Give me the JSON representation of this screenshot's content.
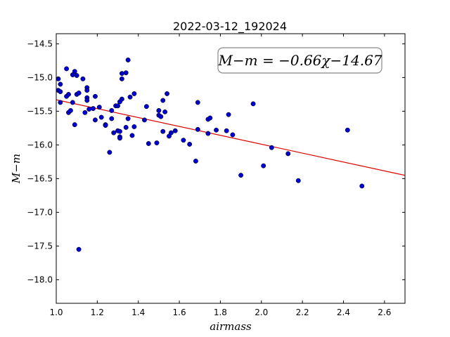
{
  "chart_data": {
    "type": "scatter",
    "title": "2022-03-12_192024",
    "xlabel": "airmass",
    "ylabel": "M−m",
    "xlim": [
      1.0,
      2.7
    ],
    "ylim": [
      -18.35,
      -14.35
    ],
    "y_inverted": true,
    "grid": false,
    "annotation": "M−m = −0.66χ−14.67",
    "xticks": [
      1.0,
      1.2,
      1.4,
      1.6,
      1.8,
      2.0,
      2.2,
      2.4,
      2.6
    ],
    "xtick_labels": [
      "1.0",
      "1.2",
      "1.4",
      "1.6",
      "1.8",
      "2.0",
      "2.2",
      "2.4",
      "2.6"
    ],
    "yticks": [
      -14.5,
      -15.0,
      -15.5,
      -16.0,
      -16.5,
      -17.0,
      -17.5,
      -18.0
    ],
    "ytick_labels": [
      "−14.5",
      "−15.0",
      "−15.5",
      "−16.0",
      "−16.5",
      "−17.0",
      "−17.5",
      "−18.0"
    ],
    "fit": {
      "slope": -0.66,
      "intercept": -14.67,
      "color": "#dd0000"
    },
    "points_color": "#0000cc",
    "points": [
      [
        1.01,
        -15.02
      ],
      [
        1.01,
        -15.19
      ],
      [
        1.02,
        -15.1
      ],
      [
        1.02,
        -15.21
      ],
      [
        1.02,
        -15.37
      ],
      [
        1.05,
        -14.87
      ],
      [
        1.05,
        -15.28
      ],
      [
        1.06,
        -15.25
      ],
      [
        1.06,
        -15.52
      ],
      [
        1.07,
        -15.49
      ],
      [
        1.08,
        -15.37
      ],
      [
        1.08,
        -14.96
      ],
      [
        1.09,
        -15.7
      ],
      [
        1.09,
        -14.91
      ],
      [
        1.1,
        -15.25
      ],
      [
        1.1,
        -14.97
      ],
      [
        1.11,
        -15.23
      ],
      [
        1.11,
        -17.55
      ],
      [
        1.13,
        -15.02
      ],
      [
        1.14,
        -15.52
      ],
      [
        1.15,
        -15.15
      ],
      [
        1.15,
        -15.19
      ],
      [
        1.15,
        -15.3
      ],
      [
        1.15,
        -15.34
      ],
      [
        1.16,
        -15.47
      ],
      [
        1.18,
        -15.46
      ],
      [
        1.19,
        -15.63
      ],
      [
        1.19,
        -15.28
      ],
      [
        1.21,
        -15.44
      ],
      [
        1.22,
        -15.59
      ],
      [
        1.24,
        -15.7
      ],
      [
        1.24,
        -15.71
      ],
      [
        1.26,
        -16.11
      ],
      [
        1.27,
        -15.61
      ],
      [
        1.27,
        -15.49
      ],
      [
        1.28,
        -15.82
      ],
      [
        1.29,
        -15.42
      ],
      [
        1.3,
        -15.42
      ],
      [
        1.3,
        -15.79
      ],
      [
        1.31,
        -15.88
      ],
      [
        1.31,
        -15.9
      ],
      [
        1.31,
        -15.8
      ],
      [
        1.31,
        -15.36
      ],
      [
        1.32,
        -15.32
      ],
      [
        1.32,
        -15.02
      ],
      [
        1.32,
        -14.94
      ],
      [
        1.34,
        -14.93
      ],
      [
        1.34,
        -15.74
      ],
      [
        1.35,
        -15.61
      ],
      [
        1.35,
        -14.74
      ],
      [
        1.36,
        -15.29
      ],
      [
        1.37,
        -15.86
      ],
      [
        1.38,
        -15.24
      ],
      [
        1.38,
        -15.73
      ],
      [
        1.43,
        -15.63
      ],
      [
        1.44,
        -15.43
      ],
      [
        1.45,
        -15.98
      ],
      [
        1.49,
        -15.97
      ],
      [
        1.5,
        -15.49
      ],
      [
        1.5,
        -15.56
      ],
      [
        1.51,
        -15.58
      ],
      [
        1.52,
        -15.8
      ],
      [
        1.52,
        -15.34
      ],
      [
        1.53,
        -15.51
      ],
      [
        1.54,
        -15.24
      ],
      [
        1.55,
        -15.87
      ],
      [
        1.56,
        -15.82
      ],
      [
        1.58,
        -15.79
      ],
      [
        1.62,
        -15.93
      ],
      [
        1.65,
        -15.99
      ],
      [
        1.68,
        -16.24
      ],
      [
        1.69,
        -15.37
      ],
      [
        1.69,
        -15.77
      ],
      [
        1.74,
        -15.83
      ],
      [
        1.74,
        -15.62
      ],
      [
        1.75,
        -15.6
      ],
      [
        1.78,
        -15.78
      ],
      [
        1.83,
        -15.79
      ],
      [
        1.84,
        -15.55
      ],
      [
        1.86,
        -15.85
      ],
      [
        1.9,
        -16.45
      ],
      [
        1.96,
        -15.39
      ],
      [
        2.01,
        -16.31
      ],
      [
        2.05,
        -16.04
      ],
      [
        2.13,
        -16.13
      ],
      [
        2.18,
        -16.53
      ],
      [
        2.42,
        -15.78
      ],
      [
        2.49,
        -16.61
      ]
    ]
  }
}
